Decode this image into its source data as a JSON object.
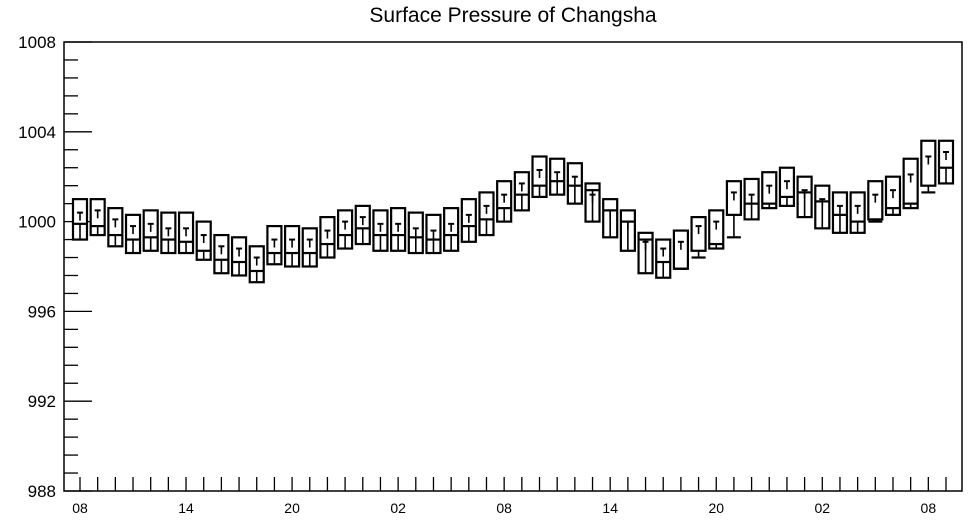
{
  "chart_data": {
    "type": "boxplot",
    "title": "Surface Pressure of Changsha",
    "xlabel": "",
    "ylabel": "",
    "ylim": [
      988,
      1008
    ],
    "yticks": [
      988,
      992,
      996,
      1000,
      1004,
      1008
    ],
    "y_tick_labels": [
      "988",
      "992",
      "996",
      "1000",
      "1004",
      "1008"
    ],
    "x_tick_labels": [
      "08",
      "14",
      "20",
      "02",
      "08",
      "14",
      "20",
      "02",
      "08"
    ],
    "x_tick_label_step": 6,
    "grid": false,
    "series": [
      {
        "median": [
          999.9,
          999.8,
          999.4,
          999.2,
          999.3,
          999.2,
          999.1,
          998.7,
          998.3,
          998.2,
          997.8,
          998.6,
          998.6,
          998.6,
          999.0,
          999.4,
          999.7,
          999.4,
          999.4,
          999.3,
          999.2,
          999.4,
          999.8,
          1000.1,
          1000.6,
          1001.2,
          1001.6,
          1001.8,
          1001.6,
          1001.4,
          1000.5,
          1000.0,
          999.2,
          998.2,
          997.9,
          998.4,
          999.0,
          999.3,
          1000.8,
          1000.8,
          1001.1,
          1001.3,
          1000.9,
          1000.3,
          1000.0,
          1000.0,
          1000.6,
          1000.8,
          1001.3,
          1002.4
        ],
        "q1": [
          999.2,
          999.4,
          998.9,
          998.6,
          998.7,
          998.6,
          998.6,
          998.3,
          997.7,
          997.6,
          997.3,
          998.1,
          998.0,
          998.0,
          998.4,
          998.8,
          999.0,
          998.7,
          998.7,
          998.6,
          998.6,
          998.7,
          999.1,
          999.4,
          1000.0,
          1000.5,
          1001.1,
          1001.2,
          1000.8,
          1000.0,
          999.3,
          998.7,
          997.7,
          997.5,
          997.9,
          998.7,
          998.8,
          1000.3,
          1000.1,
          1000.6,
          1000.7,
          1000.2,
          999.7,
          999.5,
          999.5,
          1000.1,
          1000.3,
          1000.6,
          1001.6,
          1001.7
        ],
        "q3": [
          1001.0,
          1001.0,
          1000.6,
          1000.3,
          1000.5,
          1000.4,
          1000.4,
          1000.0,
          999.4,
          999.3,
          998.9,
          999.8,
          999.8,
          999.7,
          1000.2,
          1000.5,
          1000.7,
          1000.5,
          1000.6,
          1000.4,
          1000.3,
          1000.6,
          1001.0,
          1001.3,
          1001.8,
          1002.2,
          1002.9,
          1002.8,
          1002.6,
          1001.7,
          1001.0,
          1000.5,
          999.5,
          999.2,
          999.6,
          1000.2,
          1000.5,
          1001.8,
          1001.9,
          1002.2,
          1002.4,
          1002.0,
          1001.6,
          1001.3,
          1001.3,
          1001.8,
          1002.0,
          1002.8,
          1003.6,
          1003.6
        ],
        "mean": [
          1000.4,
          1000.5,
          1000.1,
          999.8,
          999.9,
          999.7,
          999.7,
          999.4,
          998.9,
          998.8,
          998.4,
          999.2,
          999.2,
          999.2,
          999.6,
          1000.0,
          1000.2,
          999.9,
          999.9,
          999.7,
          999.6,
          999.9,
          1000.3,
          1000.7,
          1001.2,
          1001.7,
          1002.3,
          1002.2,
          1002.0,
          1001.2,
          1000.5,
          1000.0,
          999.1,
          998.8,
          999.1,
          999.8,
          1000.0,
          1001.3,
          1001.2,
          1001.6,
          1001.8,
          1001.4,
          1001.0,
          1000.7,
          1000.7,
          1001.2,
          1001.4,
          1002.1,
          1002.9,
          1003.1
        ]
      }
    ]
  },
  "colors": {
    "background": "#ffffff",
    "stroke": "#000000"
  }
}
